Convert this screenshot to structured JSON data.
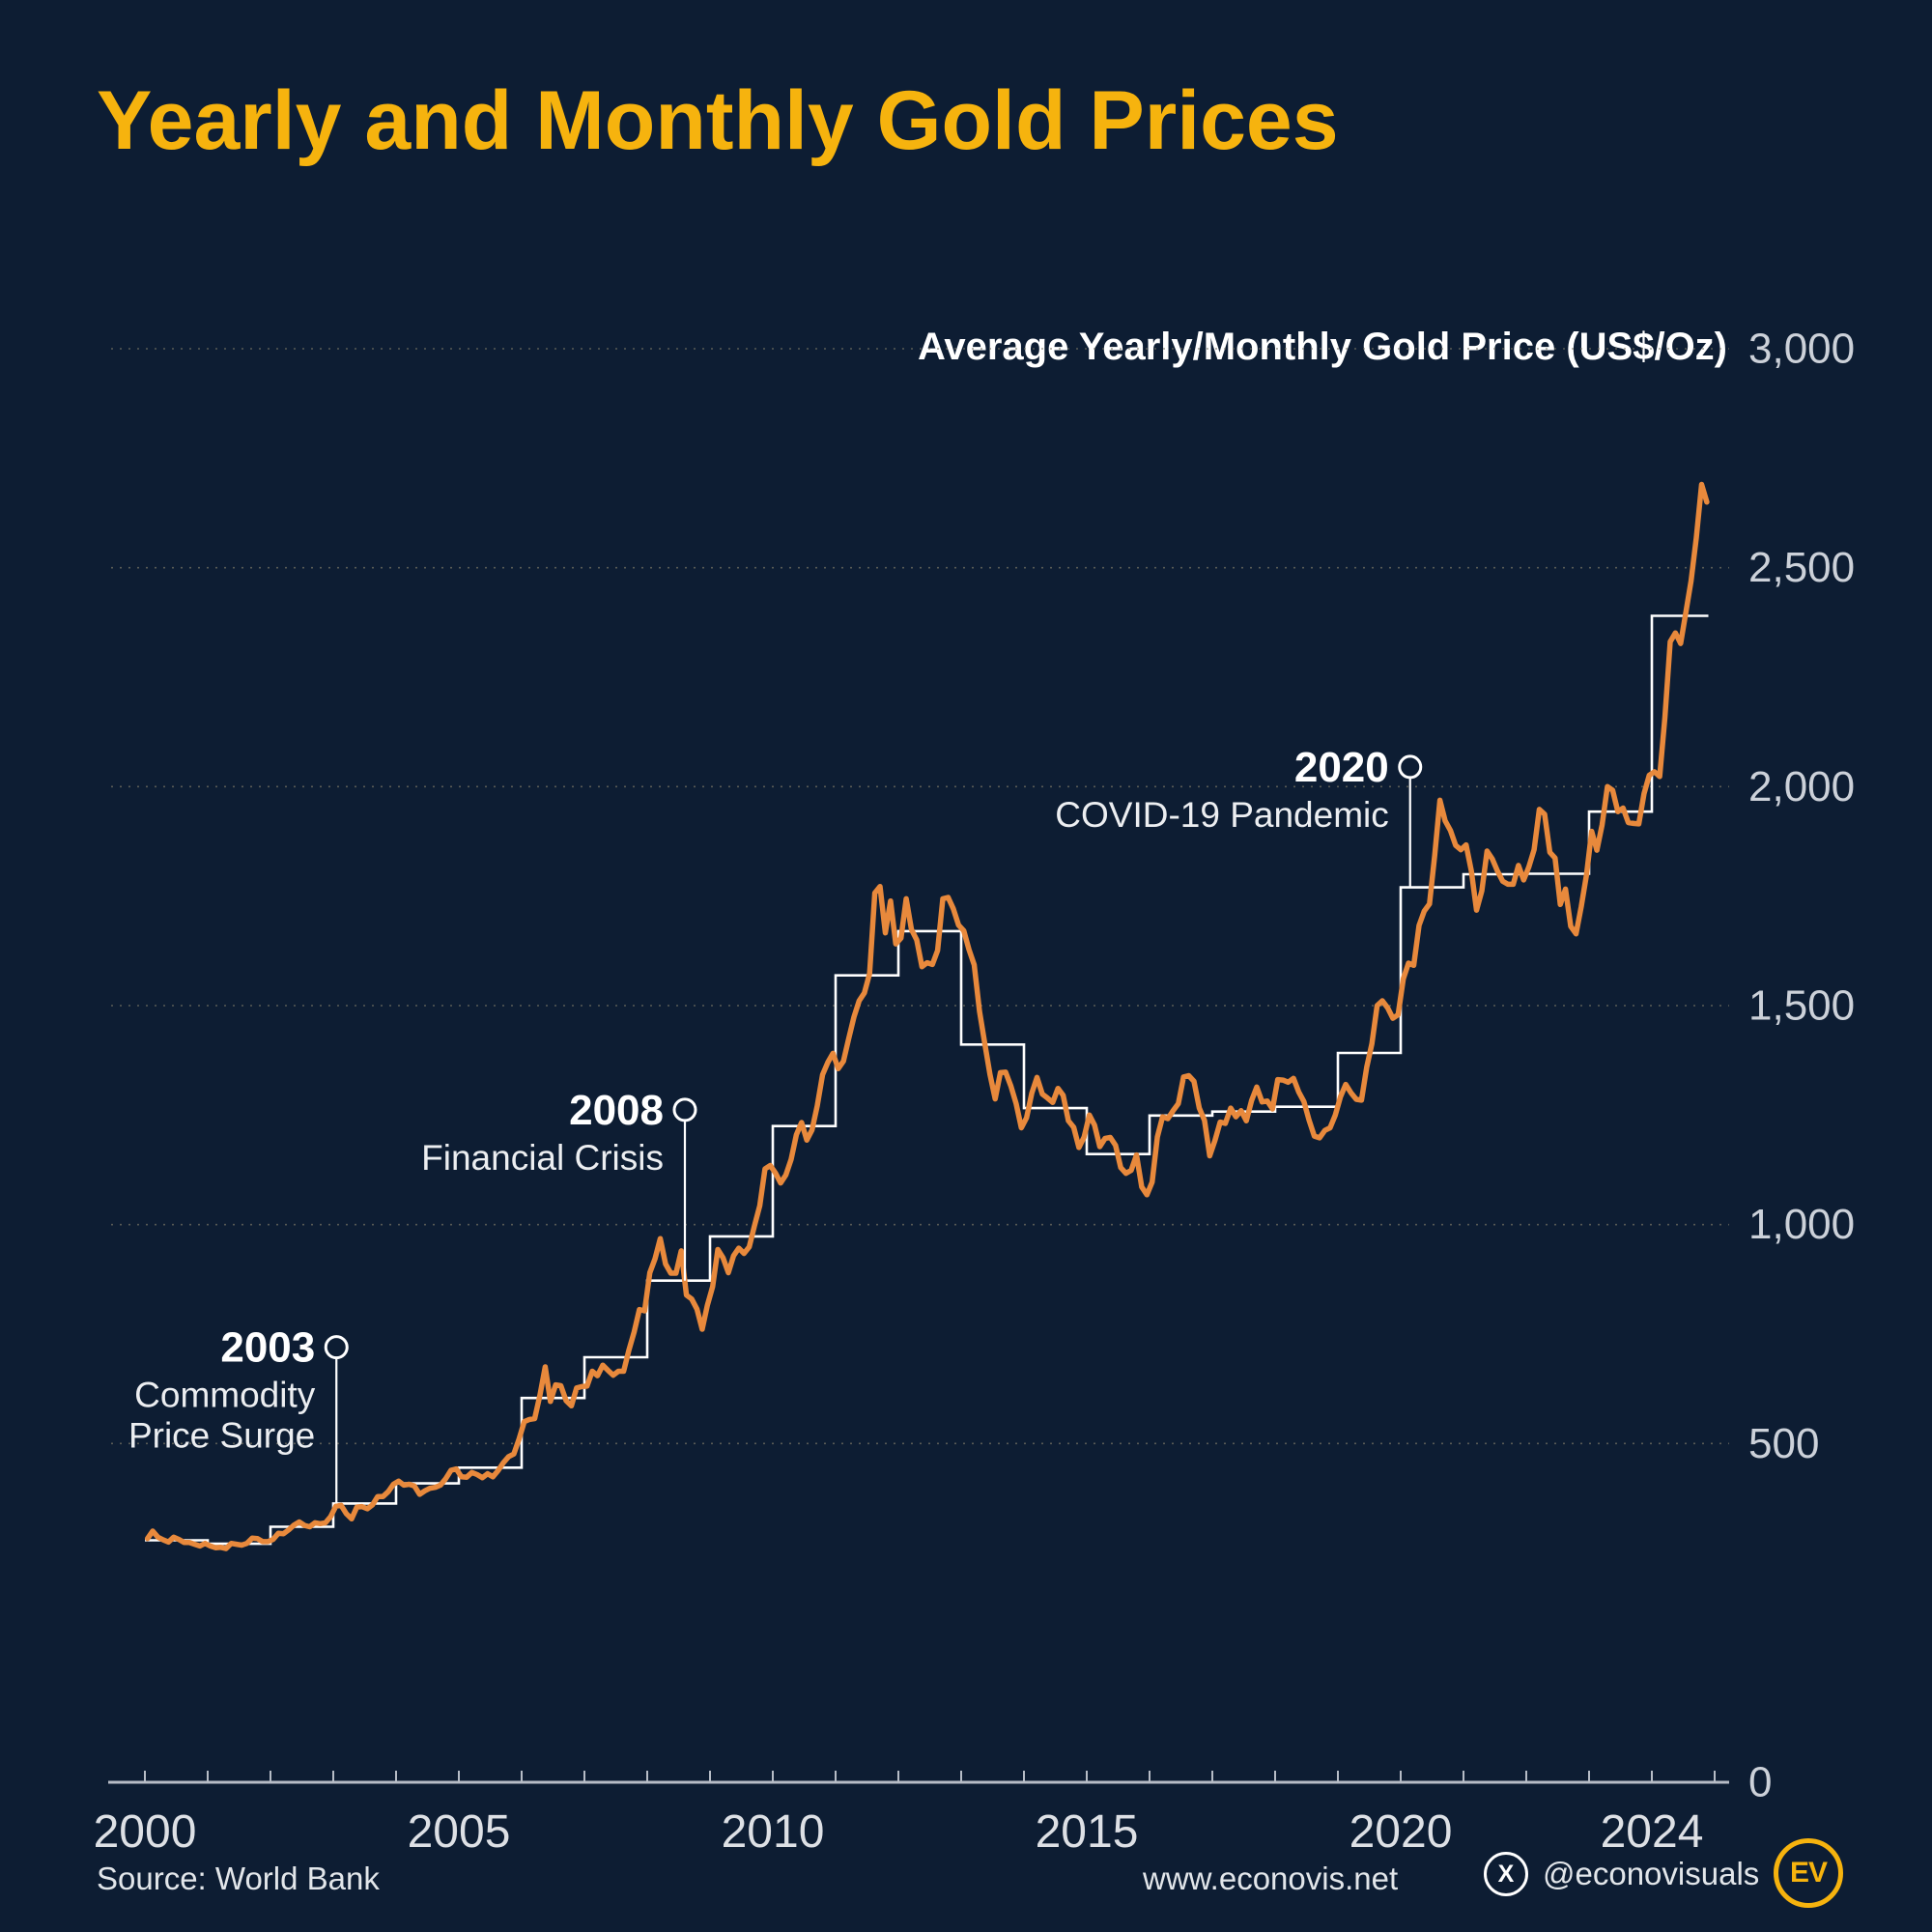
{
  "title": "Yearly and Monthly Gold Prices",
  "legend_label": "Average Yearly/Monthly Gold Price (US$/Oz)",
  "footer": {
    "source": "Source: World Bank",
    "website": "www.econovis.net",
    "social_handle": "@econovisuals",
    "logo_text": "EV"
  },
  "icons": {
    "x-icon": "X"
  },
  "colors": {
    "background": "#0d1d33",
    "title": "#f6b30e",
    "monthly_line": "#e8893c",
    "yearly_line": "#ffffff",
    "grid": "#7a7665",
    "axis": "#b6bcc6",
    "tick_label": "#ccd1d9",
    "annotation_text": "#eceef1"
  },
  "chart_data": {
    "type": "line",
    "title": "Yearly and Monthly Gold Prices",
    "ylabel": "Average Yearly/Monthly Gold Price (US$/Oz)",
    "xlim": [
      2000,
      2025
    ],
    "ylim": [
      0,
      3000
    ],
    "y_ticks": [
      0,
      500,
      1000,
      1500,
      2000,
      2500,
      3000
    ],
    "x_ticks": [
      2000,
      2005,
      2010,
      2015,
      2020,
      2024
    ],
    "grid": "horizontal-dashed",
    "legend_position": "top-right",
    "series": [
      {
        "name": "Average yearly gold price",
        "style": "step",
        "color": "#ffffff",
        "start_year": 2000,
        "interval": "year",
        "values": [
          279,
          271,
          310,
          363,
          409,
          445,
          604,
          697,
          872,
          973,
          1225,
          1569,
          1670,
          1411,
          1266,
          1161,
          1249,
          1258,
          1269,
          1392,
          1770,
          1800,
          1801,
          1943,
          2390
        ]
      },
      {
        "name": "Average monthly gold price",
        "style": "line",
        "color": "#e8893c",
        "start_year": 2000,
        "interval": "month",
        "values": [
          283,
          300,
          286,
          280,
          275,
          286,
          281,
          274,
          274,
          270,
          266,
          272,
          266,
          262,
          263,
          260,
          272,
          270,
          268,
          272,
          284,
          283,
          276,
          276,
          281,
          295,
          294,
          303,
          314,
          321,
          313,
          310,
          319,
          317,
          319,
          333,
          357,
          359,
          340,
          328,
          355,
          356,
          351,
          360,
          379,
          379,
          390,
          407,
          414,
          405,
          407,
          403,
          384,
          392,
          398,
          400,
          405,
          420,
          439,
          442,
          424,
          423,
          434,
          429,
          422,
          431,
          424,
          438,
          456,
          470,
          476,
          510,
          550,
          555,
          557,
          611,
          675,
          596,
          634,
          632,
          598,
          586,
          627,
          630,
          631,
          665,
          655,
          679,
          667,
          656,
          665,
          665,
          713,
          755,
          806,
          803,
          890,
          922,
          968,
          910,
          889,
          889,
          940,
          839,
          830,
          807,
          761,
          816,
          858,
          943,
          924,
          890,
          929,
          946,
          934,
          949,
          997,
          1043,
          1127,
          1135,
          1118,
          1095,
          1113,
          1149,
          1205,
          1233,
          1193,
          1216,
          1271,
          1342,
          1370,
          1391,
          1356,
          1373,
          1424,
          1474,
          1511,
          1529,
          1573,
          1757,
          1772,
          1666,
          1739,
          1641,
          1654,
          1744,
          1674,
          1650,
          1589,
          1598,
          1594,
          1626,
          1744,
          1747,
          1721,
          1684,
          1671,
          1628,
          1593,
          1487,
          1414,
          1343,
          1287,
          1347,
          1348,
          1316,
          1276,
          1221,
          1244,
          1300,
          1336,
          1298,
          1289,
          1279,
          1311,
          1295,
          1237,
          1222,
          1176,
          1200,
          1250,
          1227,
          1178,
          1197,
          1199,
          1181,
          1130,
          1117,
          1124,
          1159,
          1086,
          1068,
          1097,
          1200,
          1246,
          1242,
          1260,
          1276,
          1337,
          1340,
          1327,
          1266,
          1238,
          1157,
          1192,
          1234,
          1231,
          1266,
          1246,
          1260,
          1237,
          1283,
          1314,
          1280,
          1282,
          1264,
          1331,
          1330,
          1325,
          1334,
          1303,
          1281,
          1238,
          1202,
          1198,
          1215,
          1221,
          1250,
          1292,
          1320,
          1301,
          1286,
          1284,
          1359,
          1413,
          1500,
          1511,
          1495,
          1471,
          1479,
          1561,
          1597,
          1592,
          1683,
          1716,
          1732,
          1843,
          1969,
          1922,
          1900,
          1866,
          1856,
          1867,
          1808,
          1718,
          1762,
          1853,
          1835,
          1807,
          1784,
          1777,
          1777,
          1820,
          1787,
          1817,
          1856,
          1948,
          1937,
          1850,
          1837,
          1731,
          1766,
          1681,
          1664,
          1726,
          1798,
          1898,
          1855,
          1913,
          2000,
          1992,
          1943,
          1951,
          1918,
          1916,
          1915,
          1984,
          2026,
          2034,
          2023,
          2158,
          2331,
          2351,
          2327,
          2398,
          2470,
          2568,
          2690,
          2650
        ]
      }
    ],
    "annotations": [
      {
        "year_label": "2003",
        "text_lines": [
          "Commodity",
          "Price Surge"
        ],
        "anchor_year": 2003.05,
        "circle_value": 720,
        "attach_value": 363
      },
      {
        "year_label": "2008",
        "text_lines": [
          "Financial Crisis"
        ],
        "anchor_year": 2008.6,
        "circle_value": 1262,
        "attach_value": 872
      },
      {
        "year_label": "2020",
        "text_lines": [
          "COVID-19 Pandemic"
        ],
        "anchor_year": 2020.15,
        "circle_value": 2045,
        "attach_value": 1770
      }
    ]
  }
}
